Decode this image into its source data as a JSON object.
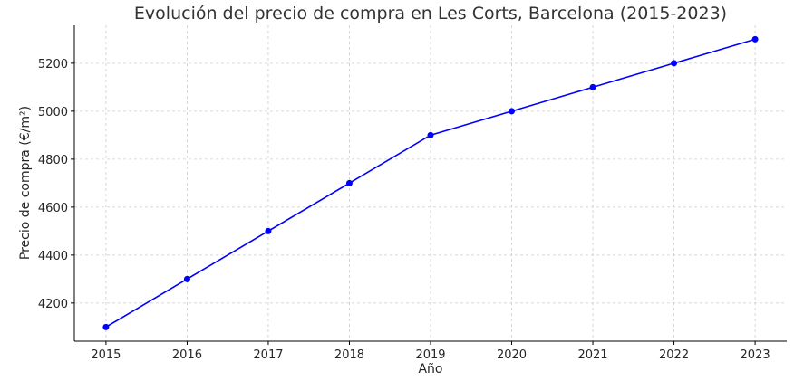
{
  "chart_data": {
    "type": "line",
    "title": "Evolución del precio de compra en Les Corts, Barcelona (2015-2023)",
    "xlabel": "Año",
    "ylabel": "Precio de compra (€/m²)",
    "x": [
      2015,
      2016,
      2017,
      2018,
      2019,
      2020,
      2021,
      2022,
      2023
    ],
    "series": [
      {
        "values": [
          4100,
          4300,
          4500,
          4700,
          4900,
          5000,
          5100,
          5200,
          5300
        ],
        "color": "#0000ff",
        "marker": "circle"
      }
    ],
    "xticks": [
      "2015",
      "2016",
      "2017",
      "2018",
      "2019",
      "2020",
      "2021",
      "2022",
      "2023"
    ],
    "yticks": [
      "4200",
      "4400",
      "4600",
      "4800",
      "5000",
      "5200"
    ],
    "xlim": [
      2014.61,
      2023.39
    ],
    "ylim": [
      4041,
      5358
    ],
    "grid": true
  }
}
